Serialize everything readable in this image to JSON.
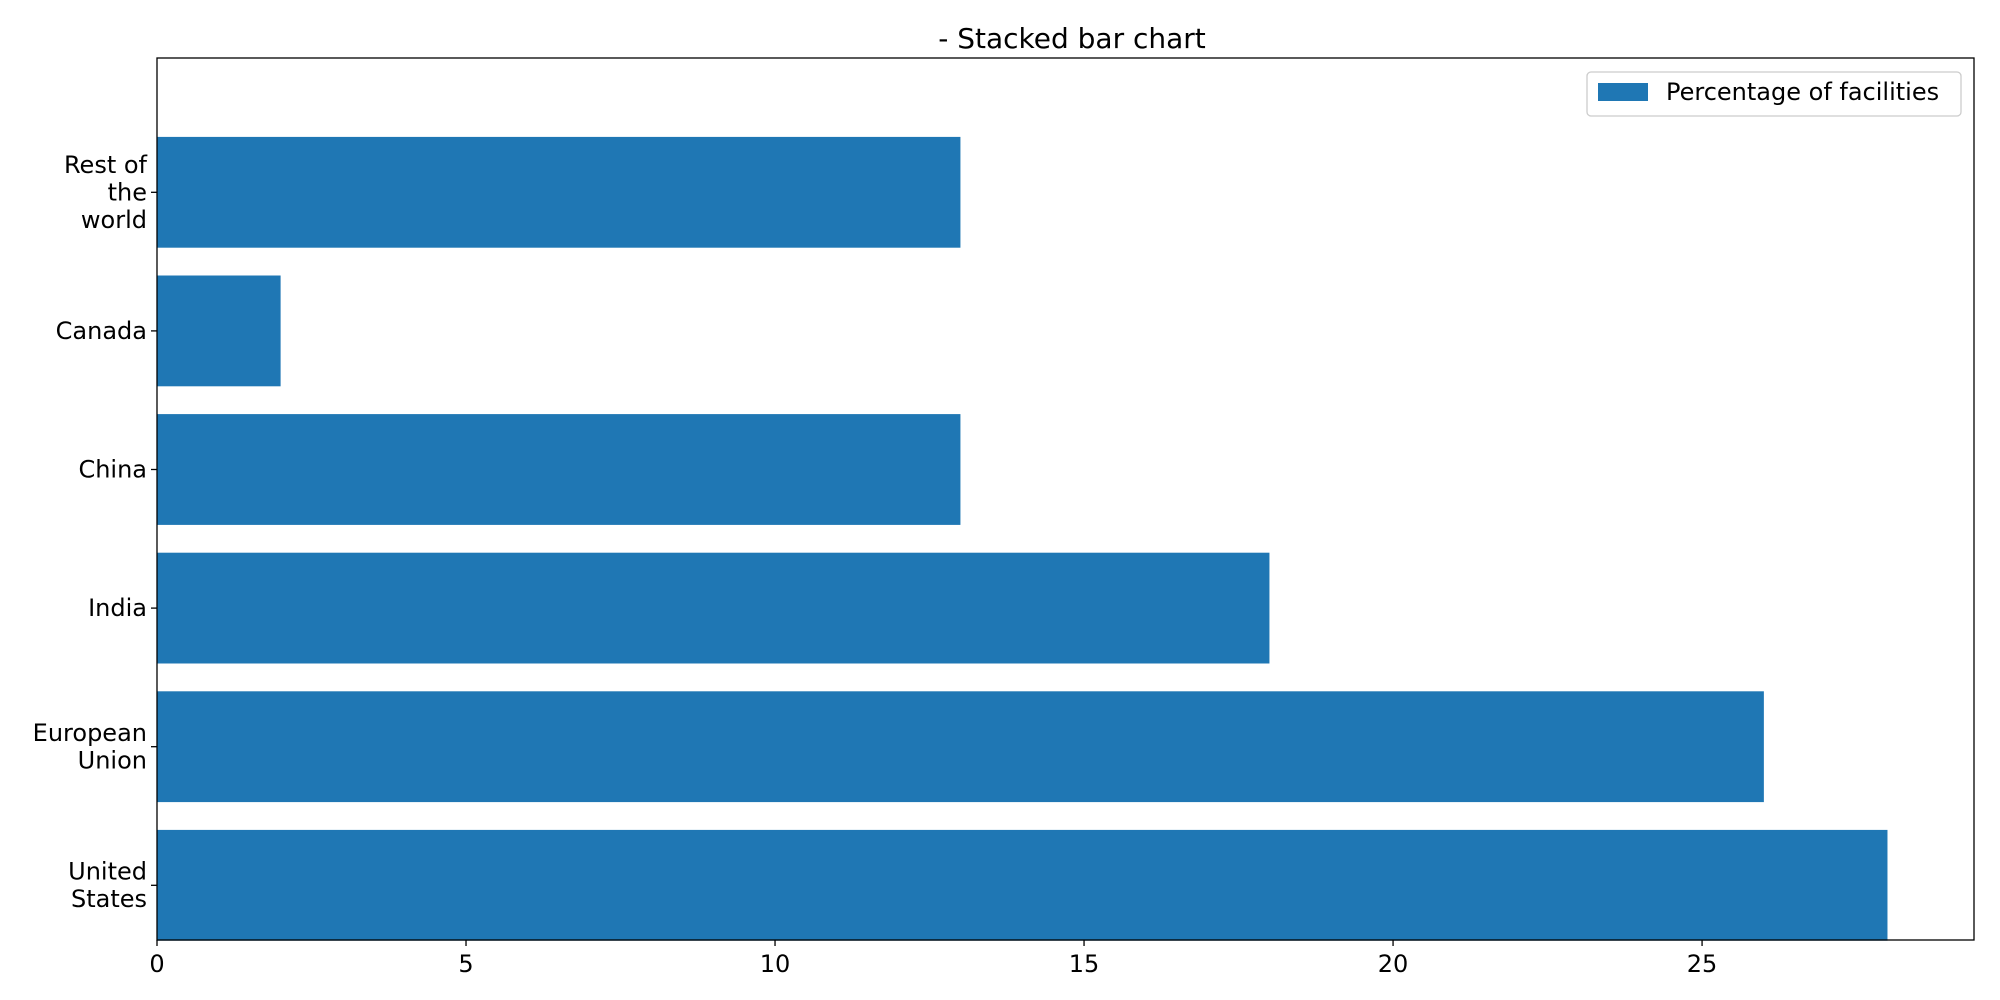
{
  "chart_data": {
    "type": "bar",
    "orientation": "horizontal",
    "title": "- Stacked bar chart",
    "xlabel": "",
    "ylabel": "",
    "categories": [
      "United States",
      "European Union",
      "India",
      "China",
      "Canada",
      "Rest of the world"
    ],
    "category_label_lines": [
      [
        "United",
        "States"
      ],
      [
        "European",
        "Union"
      ],
      [
        "India"
      ],
      [
        "China"
      ],
      [
        "Canada"
      ],
      [
        "Rest of",
        "the",
        "world"
      ]
    ],
    "series": [
      {
        "name": "Percentage of facilities",
        "values": [
          28,
          26,
          18,
          13,
          2,
          13
        ],
        "color": "#1f77b4"
      }
    ],
    "xlim": [
      0,
      29.4
    ],
    "xticks": [
      0,
      5,
      10,
      15,
      20,
      25
    ],
    "grid": false,
    "legend_position": "top-right"
  }
}
